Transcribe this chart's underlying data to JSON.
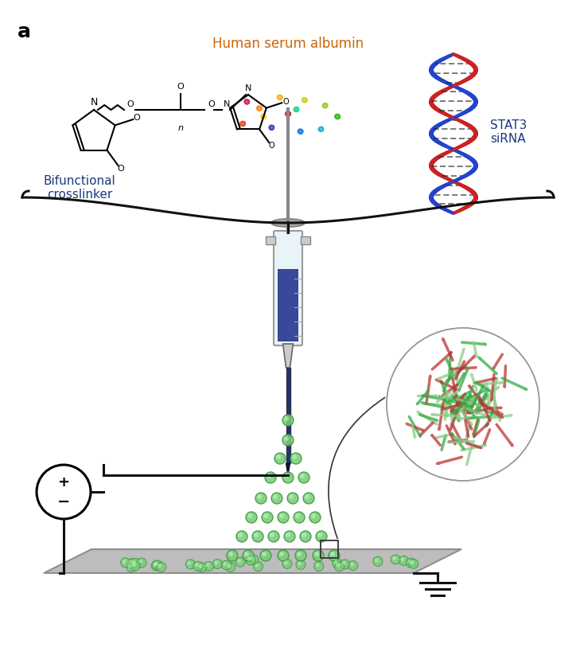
{
  "title_label": "a",
  "label_hsa": "Human serum albumin",
  "label_crosslinker": "Bifunctional\ncrosslinker",
  "label_sirna": "STAT3\nsiRNA",
  "bg_color": "#ffffff",
  "text_color_black": "#000000",
  "text_color_blue": "#1a3a7a",
  "text_color_orange": "#cc6600",
  "plate_color": "#b8b8b8",
  "plate_color_dark": "#888888",
  "nanoparticle_edge": "#3a9a3a",
  "nanoparticle_face": "#7acc7a",
  "syringe_body_color": "#e8f4f8",
  "syringe_liquid_color": "#1a2a88",
  "circuit_color": "#111111",
  "brace_color": "#111111",
  "dna_red": "#cc2222",
  "dna_blue": "#2244cc",
  "dna_rung": "#222222"
}
